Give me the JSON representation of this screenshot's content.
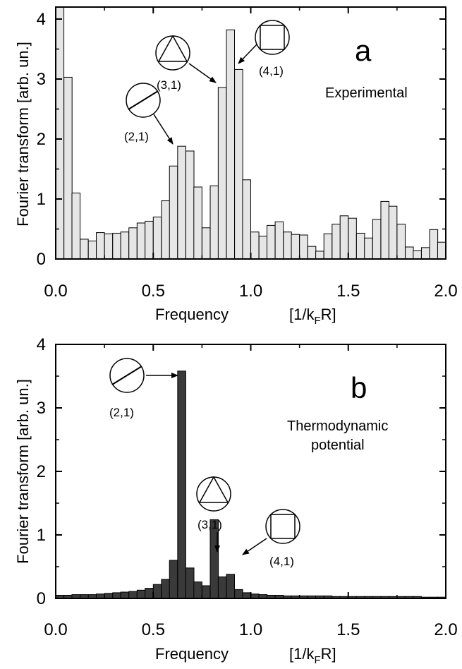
{
  "chart_data": [
    {
      "type": "bar",
      "panel_letter": "a",
      "annotation": "Experimental",
      "xlabel": "Frequency",
      "xunit": "[1/k_FR]",
      "ylabel": "Fourier transform  [arb. un.]",
      "xlim": [
        0,
        2.0
      ],
      "ylim": [
        0,
        4.2
      ],
      "xticks": [
        "0.0",
        "0.5",
        "1.0",
        "1.5",
        "2.0"
      ],
      "yticks": [
        "0",
        "1",
        "2",
        "3",
        "4"
      ],
      "bar_width": 0.0417,
      "bar_color": "#e6e6e6",
      "x": [
        0.021,
        0.063,
        0.104,
        0.146,
        0.188,
        0.229,
        0.271,
        0.313,
        0.354,
        0.396,
        0.438,
        0.479,
        0.521,
        0.563,
        0.604,
        0.646,
        0.688,
        0.729,
        0.771,
        0.813,
        0.854,
        0.896,
        0.938,
        0.979,
        1.021,
        1.063,
        1.104,
        1.146,
        1.188,
        1.229,
        1.271,
        1.313,
        1.354,
        1.396,
        1.438,
        1.479,
        1.521,
        1.563,
        1.604,
        1.646,
        1.688,
        1.729,
        1.771,
        1.813,
        1.854,
        1.896,
        1.938,
        1.979
      ],
      "values": [
        4.2,
        3.03,
        1.1,
        0.33,
        0.3,
        0.44,
        0.42,
        0.43,
        0.45,
        0.52,
        0.6,
        0.63,
        0.7,
        0.97,
        1.55,
        1.88,
        1.8,
        1.2,
        0.52,
        1.22,
        2.86,
        3.82,
        3.16,
        1.32,
        0.45,
        0.38,
        0.56,
        0.62,
        0.45,
        0.41,
        0.4,
        0.21,
        0.13,
        0.42,
        0.58,
        0.72,
        0.68,
        0.43,
        0.35,
        0.66,
        0.96,
        0.88,
        0.58,
        0.2,
        0.14,
        0.19,
        0.49,
        0.28
      ],
      "peak_labels": [
        {
          "label": "(2,1)",
          "icon": "circle-line-icon"
        },
        {
          "label": "(3,1)",
          "icon": "circle-triangle-icon"
        },
        {
          "label": "(4,1)",
          "icon": "circle-square-icon"
        }
      ]
    },
    {
      "type": "bar",
      "panel_letter": "b",
      "annotation_lines": [
        "Thermodynamic",
        "potential"
      ],
      "xlabel": "Frequency",
      "xunit": "[1/k_FR]",
      "ylabel": "Fourier transform  [arb. un.]",
      "xlim": [
        0,
        2.0
      ],
      "ylim": [
        0,
        4.0
      ],
      "xticks": [
        "0.0",
        "0.5",
        "1.0",
        "1.5",
        "2.0"
      ],
      "yticks": [
        "0",
        "1",
        "2",
        "3",
        "4"
      ],
      "bar_width": 0.0417,
      "bar_color": "#3a3a3a",
      "x": [
        0.021,
        0.063,
        0.104,
        0.146,
        0.188,
        0.229,
        0.271,
        0.313,
        0.354,
        0.396,
        0.438,
        0.479,
        0.521,
        0.563,
        0.604,
        0.646,
        0.688,
        0.729,
        0.771,
        0.813,
        0.854,
        0.896,
        0.938,
        0.979,
        1.021,
        1.063,
        1.104,
        1.146,
        1.188,
        1.229,
        1.271,
        1.313,
        1.354,
        1.396,
        1.438,
        1.479,
        1.521,
        1.563,
        1.604,
        1.646,
        1.688,
        1.729,
        1.771,
        1.813,
        1.854,
        1.896,
        1.938,
        1.979
      ],
      "values": [
        0.05,
        0.05,
        0.06,
        0.06,
        0.06,
        0.07,
        0.08,
        0.09,
        0.1,
        0.11,
        0.13,
        0.16,
        0.22,
        0.3,
        0.6,
        3.58,
        0.48,
        0.26,
        0.2,
        1.24,
        0.34,
        0.38,
        0.14,
        0.09,
        0.07,
        0.06,
        0.05,
        0.05,
        0.04,
        0.04,
        0.04,
        0.04,
        0.04,
        0.04,
        0.03,
        0.03,
        0.03,
        0.03,
        0.03,
        0.03,
        0.03,
        0.03,
        0.03,
        0.03,
        0.03,
        0.02,
        0.02,
        0.02
      ],
      "peak_labels": [
        {
          "label": "(2,1)",
          "icon": "circle-line-icon"
        },
        {
          "label": "(3,1)",
          "icon": "circle-triangle-icon"
        },
        {
          "label": "(4,1)",
          "icon": "circle-square-icon"
        }
      ]
    }
  ]
}
